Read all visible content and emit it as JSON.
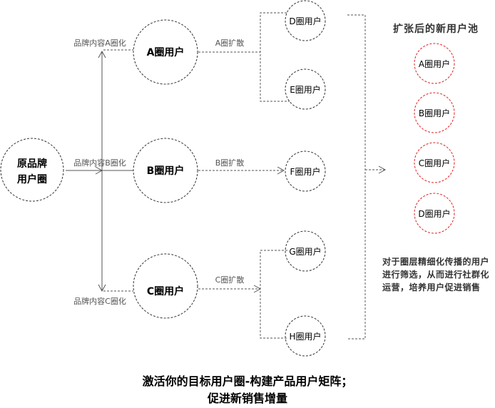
{
  "source": {
    "label": "原品牌用户圈",
    "line1": "原品牌",
    "line2": "用户圈"
  },
  "branches": [
    {
      "node": "A圈用户",
      "content_label": "品牌内容A圈化",
      "spread_label": "A圈扩散",
      "targets": [
        "D圈用户",
        "E圈用户"
      ]
    },
    {
      "node": "B圈用户",
      "content_label": "品牌内容B圈化",
      "spread_label": "B圈扩散",
      "targets": [
        "F圈用户"
      ]
    },
    {
      "node": "C圈用户",
      "content_label": "品牌内容C圈化",
      "spread_label": "C圈扩散",
      "targets": [
        "G圈用户",
        "H圈用户"
      ]
    }
  ],
  "pool": {
    "title": "扩张后的新用户池",
    "items": [
      "A圈用户",
      "B圈用户",
      "C圈用户",
      "D圈用户"
    ],
    "description": "对于圈层精细化传播的用户进行筛选，从而进行社群化运营，培养用户促进销售"
  },
  "footer": {
    "line1": "激活你的目标用户圈-构建产品用户矩阵；",
    "line2": "促进新销售增量"
  },
  "colors": {
    "node_stroke": "#333333",
    "pool_stroke": "#e02020",
    "connector": "#777777"
  }
}
